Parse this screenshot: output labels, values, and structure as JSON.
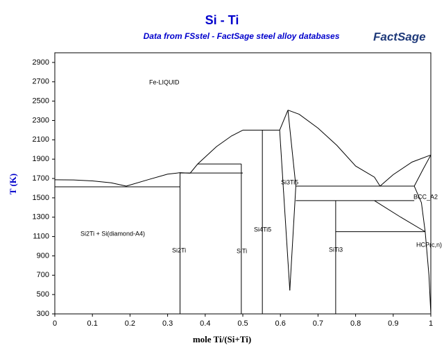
{
  "chart_data": {
    "type": "line",
    "title": "Si - Ti",
    "subtitle": "Data from FSstel - FactSage steel alloy databases",
    "logo": "FactSage",
    "xlabel": "mole Ti/(Si+Ti)",
    "ylabel": "T (K)",
    "xlim": [
      0,
      1
    ],
    "ylim": [
      300,
      3000
    ],
    "xticks": [
      0,
      0.1,
      0.2,
      0.3,
      0.4,
      0.5,
      0.6,
      0.7,
      0.8,
      0.9,
      1
    ],
    "yticks": [
      300,
      500,
      700,
      900,
      1100,
      1300,
      1500,
      1700,
      1900,
      2100,
      2300,
      2500,
      2700,
      2900
    ],
    "color": "#000000",
    "annotations": [
      "Fe-LIQUID",
      "Si2Ti + Si(diamond-A4)",
      "Si2Ti",
      "SiTi",
      "Si4Ti5",
      "Si3Ti5",
      "SiTi3",
      "BCC_A2",
      "HCP(c,n)"
    ],
    "series": [
      {
        "x": [
          0,
          0.05,
          0.1,
          0.15,
          0.19
        ],
        "values": [
          1687,
          1685,
          1675,
          1655,
          1621
        ]
      },
      {
        "x": [
          0.19,
          0.25,
          0.3,
          0.333
        ],
        "values": [
          1621,
          1690,
          1745,
          1760
        ]
      },
      {
        "x": [
          0.333,
          0.36,
          0.38,
          0.43,
          0.47,
          0.5
        ],
        "values": [
          1760,
          1755,
          1850,
          2030,
          2140,
          2200
        ]
      },
      {
        "x": [
          0.5,
          0.598
        ],
        "values": [
          2200,
          2200
        ]
      },
      {
        "x": [
          0.598,
          0.62
        ],
        "values": [
          2200,
          2407
        ]
      },
      {
        "x": [
          0.62,
          0.65,
          0.7,
          0.75,
          0.8,
          0.85,
          0.865
        ],
        "values": [
          2407,
          2364,
          2221,
          2043,
          1829,
          1714,
          1621
        ]
      },
      {
        "x": [
          0.865,
          0.9,
          0.95,
          1
        ],
        "values": [
          1621,
          1740,
          1870,
          1943
        ]
      },
      {
        "x": [
          0.956,
          0.98,
          1
        ],
        "values": [
          1621,
          1800,
          1943
        ]
      },
      {
        "x": [
          0,
          0.333
        ],
        "values": [
          1614,
          1614
        ]
      },
      {
        "x": [
          0.333,
          0.333
        ],
        "values": [
          1760,
          300
        ]
      },
      {
        "x": [
          0.333,
          0.5
        ],
        "values": [
          1757,
          1757
        ]
      },
      {
        "x": [
          0.496,
          0.496
        ],
        "values": [
          1850,
          300
        ]
      },
      {
        "x": [
          0.38,
          0.496
        ],
        "values": [
          1850,
          1850
        ]
      },
      {
        "x": [
          0.552,
          0.552
        ],
        "values": [
          2200,
          300
        ]
      },
      {
        "x": [
          0.598,
          0.625
        ],
        "values": [
          2200,
          543
        ]
      },
      {
        "x": [
          0.62,
          0.641,
          0.625
        ],
        "values": [
          2407,
          1621,
          543
        ]
      },
      {
        "x": [
          0.641,
          0.956
        ],
        "values": [
          1621,
          1621
        ]
      },
      {
        "x": [
          0.641,
          0.956
        ],
        "values": [
          1471,
          1471
        ]
      },
      {
        "x": [
          0.747,
          0.747
        ],
        "values": [
          1471,
          300
        ]
      },
      {
        "x": [
          0.747,
          0.985
        ],
        "values": [
          1150,
          1150
        ]
      },
      {
        "x": [
          0.85,
          0.92,
          0.985
        ],
        "values": [
          1471,
          1300,
          1150
        ]
      },
      {
        "x": [
          0.956,
          0.975,
          0.985
        ],
        "values": [
          1621,
          1450,
          1150
        ]
      },
      {
        "x": [
          0.985,
          0.995,
          1
        ],
        "values": [
          1150,
          700,
          300
        ]
      }
    ]
  }
}
